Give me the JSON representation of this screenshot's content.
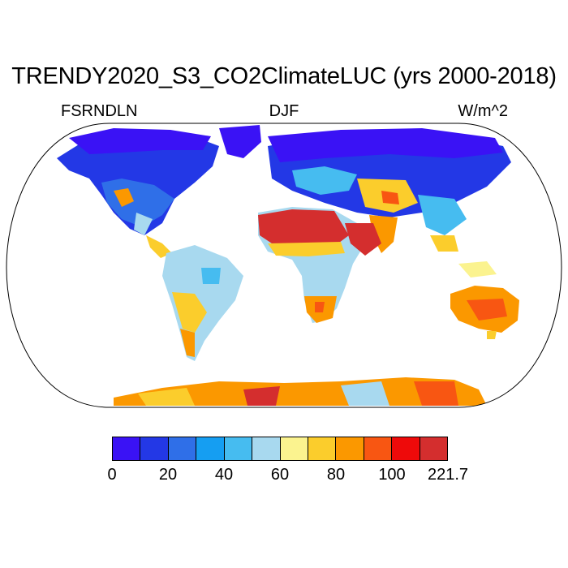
{
  "title": "TRENDY2020_S3_CO2ClimateLUC (yrs 2000-2018)",
  "left_label": "FSRNDLN",
  "center_label": "DJF",
  "right_label": "W/m^2",
  "colorbar": {
    "colors": [
      "#3a12f5",
      "#2338e6",
      "#2f6fe8",
      "#159ef2",
      "#46bcf0",
      "#a8d9ef",
      "#fbf38f",
      "#fbcd2c",
      "#fb9800",
      "#f85612",
      "#ee0a0a",
      "#d42e2e"
    ],
    "tick_labels": [
      "0",
      "20",
      "40",
      "60",
      "80",
      "100",
      "221.7"
    ]
  }
}
